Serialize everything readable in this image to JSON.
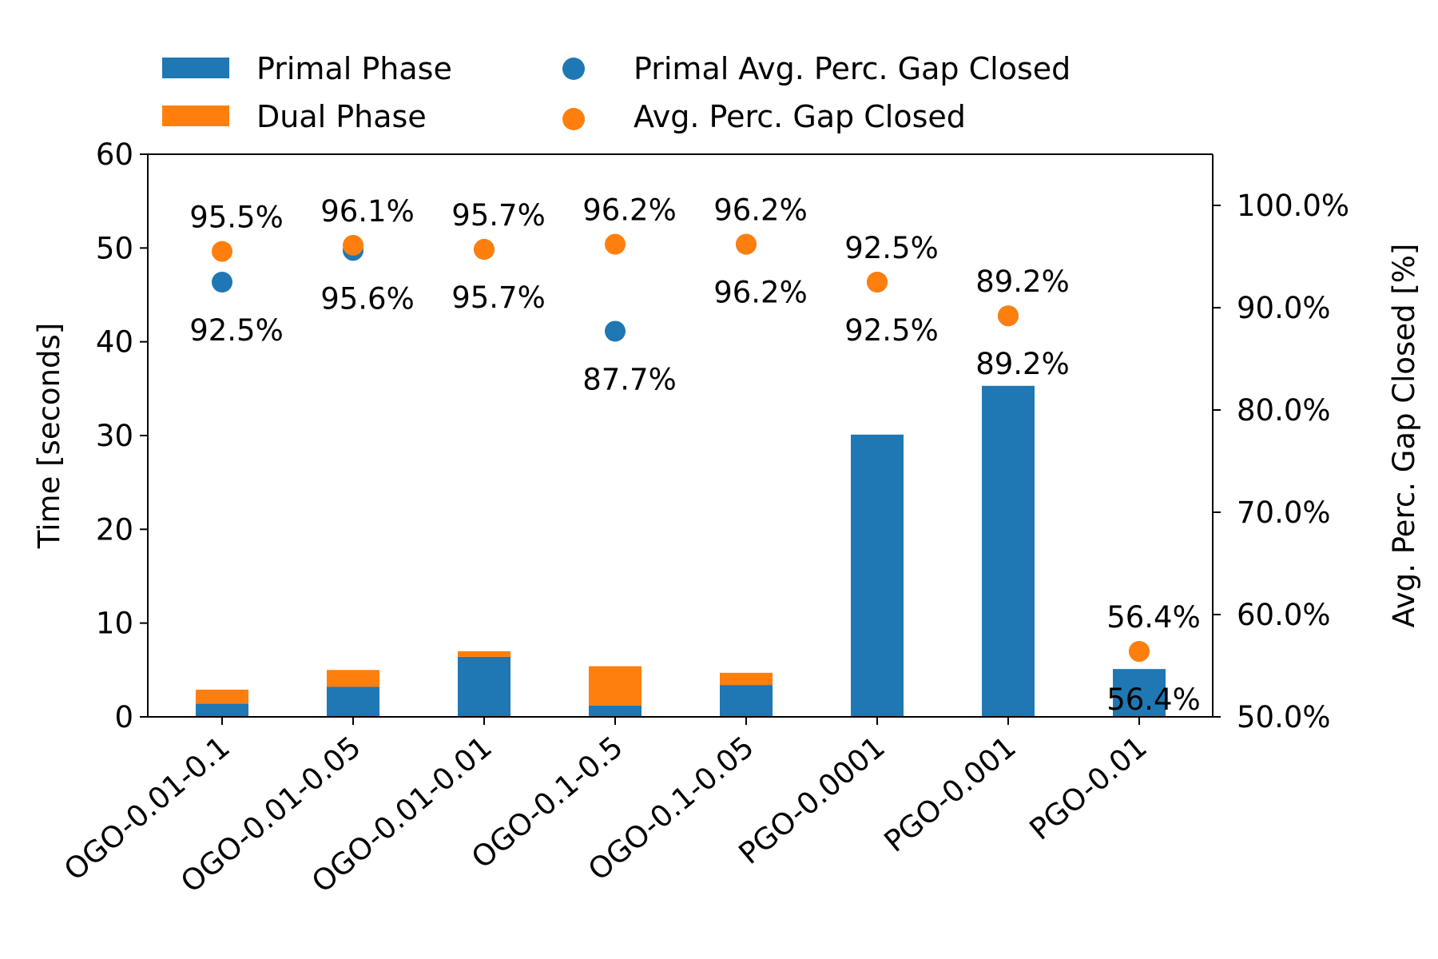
{
  "chart_data": {
    "type": "bar",
    "stacked": true,
    "categories": [
      "OGO-0.01-0.1",
      "OGO-0.01-0.05",
      "OGO-0.01-0.01",
      "OGO-0.1-0.5",
      "OGO-0.1-0.05",
      "PGO-0.0001",
      "PGO-0.001",
      "PGO-0.01"
    ],
    "series": [
      {
        "name": "Primal Phase",
        "axis": "left",
        "kind": "bar",
        "values": [
          1.4,
          3.2,
          6.4,
          1.2,
          3.4,
          30.1,
          35.3,
          5.1
        ]
      },
      {
        "name": "Dual Phase",
        "axis": "left",
        "kind": "bar",
        "values": [
          1.5,
          1.8,
          0.6,
          4.2,
          1.3,
          0.0,
          0.0,
          0.0
        ]
      },
      {
        "name": "Primal Avg. Perc. Gap Closed",
        "axis": "right",
        "kind": "scatter",
        "values": [
          92.5,
          95.6,
          95.7,
          87.7,
          96.2,
          92.5,
          89.2,
          56.4
        ],
        "labels": [
          "92.5%",
          "95.6%",
          "95.7%",
          "87.7%",
          "96.2%",
          "92.5%",
          "89.2%",
          "56.4%"
        ]
      },
      {
        "name": "Avg. Perc. Gap Closed",
        "axis": "right",
        "kind": "scatter",
        "values": [
          95.5,
          96.1,
          95.7,
          96.2,
          96.2,
          92.5,
          89.2,
          56.4
        ],
        "labels": [
          "95.5%",
          "96.1%",
          "95.7%",
          "96.2%",
          "96.2%",
          "92.5%",
          "89.2%",
          "56.4%"
        ]
      }
    ],
    "ylabel": "Time [seconds]",
    "ylim": [
      0,
      60
    ],
    "yticks": [
      0,
      10,
      20,
      30,
      40,
      50,
      60
    ],
    "y2label": "Avg. Perc. Gap Closed [%]",
    "y2lim": [
      50,
      105
    ],
    "y2ticks": [
      50,
      60,
      70,
      80,
      90,
      100
    ],
    "y2ticklabels": [
      "50.0%",
      "60.0%",
      "70.0%",
      "80.0%",
      "90.0%",
      "100.0%"
    ],
    "legend_position": "top-left, outside plot, two columns",
    "grid": false,
    "colors": {
      "primal": "#1f77b4",
      "dual": "#ff7f0e"
    }
  }
}
